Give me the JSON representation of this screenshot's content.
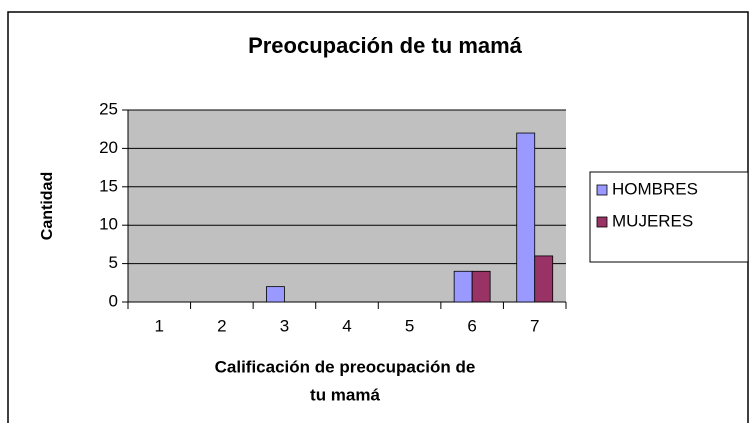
{
  "chart_data": {
    "type": "bar",
    "title": "Preocupación de tu mamá",
    "xlabel": [
      "Calificación de preocupación de",
      "tu mamá"
    ],
    "ylabel": "Cantidad",
    "categories": [
      "1",
      "2",
      "3",
      "4",
      "5",
      "6",
      "7"
    ],
    "series": [
      {
        "name": "HOMBRES",
        "color": "#9999ff",
        "values": [
          0,
          0,
          2,
          0,
          0,
          4,
          22
        ]
      },
      {
        "name": "MUJERES",
        "color": "#993366",
        "values": [
          0,
          0,
          0,
          0,
          0,
          4,
          6
        ]
      }
    ],
    "ylim": [
      0,
      25
    ],
    "yticks": [
      0,
      5,
      10,
      15,
      20,
      25
    ],
    "grid": true,
    "legend": "right"
  }
}
